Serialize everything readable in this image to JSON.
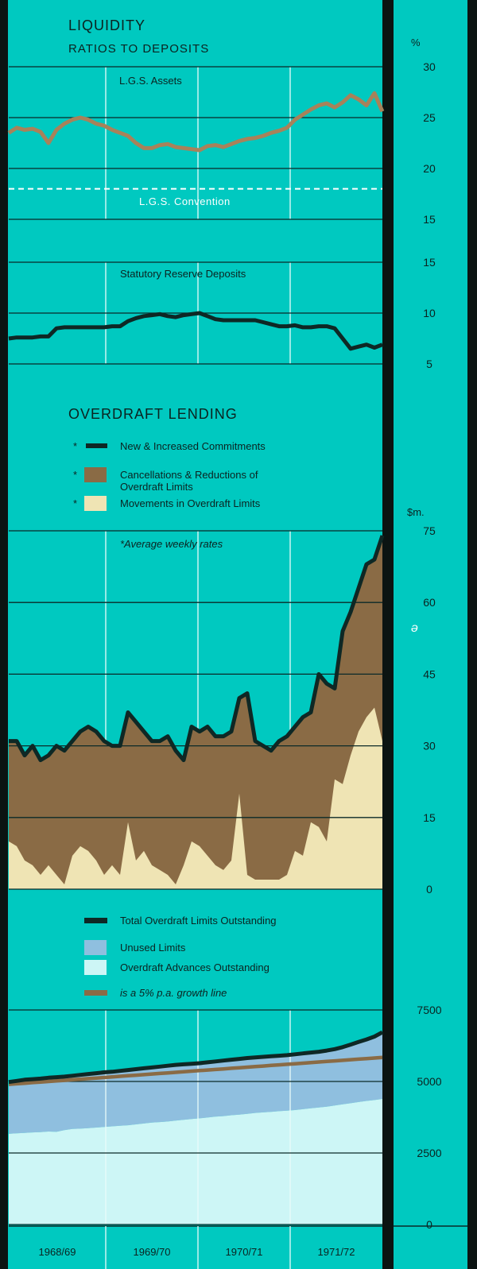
{
  "colors": {
    "background": "#00c9c0",
    "separator": "#0b1412",
    "grid_dark": "#0b2a28",
    "grid_light": "#e9fbfa",
    "lgs_line": "#a8825a",
    "dark_line": "#0e2825",
    "cancellations": "#8a6b45",
    "movements": "#efe4b4",
    "unused": "#8fbfdf",
    "advances": "#cdf6f6",
    "growth_line": "#8a6b45"
  },
  "liquidity": {
    "title": "LIQUIDITY",
    "subtitle": "RATIOS TO DEPOSITS",
    "unit": "%",
    "lgs_label": "L.G.S. Assets",
    "convention_label": "L.G.S. Convention",
    "srd_label": "Statutory Reserve Deposits"
  },
  "overdraft": {
    "title": "OVERDRAFT LENDING",
    "legend": [
      {
        "marker": "*",
        "label_lines": [
          "New & Increased Commitments"
        ],
        "swatch": "line"
      },
      {
        "marker": "*",
        "label_lines": [
          "Cancellations & Reductions of",
          "Overdraft Limits"
        ],
        "swatch": "cancellations"
      },
      {
        "marker": "*",
        "label_lines": [
          "Movements in Overdraft Limits"
        ],
        "swatch": "movements"
      }
    ],
    "unit": "$m.",
    "note": "*Average weekly rates",
    "stray_mark": "ə"
  },
  "limits_legend": [
    {
      "label": "Total Overdraft Limits Outstanding",
      "swatch": "line",
      "italic": false
    },
    {
      "label": "Unused Limits",
      "swatch": "unused",
      "italic": false
    },
    {
      "label": "Overdraft Advances Outstanding",
      "swatch": "advances",
      "italic": false
    },
    {
      "label": "is a 5% p.a. growth line",
      "swatch": "growth",
      "italic": true
    }
  ],
  "x_axis": [
    "1968/69",
    "1969/70",
    "1970/71",
    "1971/72"
  ],
  "chart_data": [
    {
      "type": "line",
      "panel": "lgs",
      "x": [
        0,
        1,
        2,
        3,
        4,
        5,
        6,
        7,
        8,
        9,
        10,
        11,
        12,
        13,
        14,
        15,
        16,
        17,
        18,
        19,
        20,
        21,
        22,
        23,
        24,
        25,
        26,
        27,
        28,
        29,
        30,
        31,
        32,
        33,
        34,
        35,
        36,
        37,
        38,
        39,
        40,
        41,
        42,
        43,
        44,
        45,
        46,
        47
      ],
      "series": [
        {
          "name": "L.G.S. Assets",
          "values": [
            23.5,
            24.0,
            23.8,
            23.9,
            23.6,
            22.5,
            23.8,
            24.4,
            24.8,
            25.0,
            24.8,
            24.4,
            24.2,
            23.8,
            23.5,
            23.2,
            22.5,
            22.0,
            22.0,
            22.3,
            22.4,
            22.1,
            22.0,
            21.9,
            21.8,
            22.2,
            22.3,
            22.1,
            22.4,
            22.7,
            22.9,
            23.0,
            23.2,
            23.5,
            23.7,
            24.0,
            24.8,
            25.3,
            25.8,
            26.2,
            26.4,
            26.0,
            26.5,
            27.2,
            26.8,
            26.2,
            27.4,
            25.6
          ]
        },
        {
          "name": "L.G.S. Convention",
          "values": [
            18.0,
            18.0,
            18.0,
            18.0,
            18.0,
            18.0,
            18.0,
            18.0,
            18.0,
            18.0,
            18.0,
            18.0,
            18.0,
            18.0,
            18.0,
            18.0,
            18.0,
            18.0,
            18.0,
            18.0,
            18.0,
            18.0,
            18.0,
            18.0,
            18.0,
            18.0,
            18.0,
            18.0,
            18.0,
            18.0,
            18.0,
            18.0,
            18.0,
            18.0,
            18.0,
            18.0,
            18.0,
            18.0,
            18.0,
            18.0,
            18.0,
            18.0,
            18.0,
            18.0,
            18.0,
            18.0,
            18.0,
            18.0
          ]
        }
      ],
      "ylim": [
        15,
        30
      ],
      "yticks": [
        15,
        20,
        25,
        30
      ]
    },
    {
      "type": "line",
      "panel": "srd",
      "x": [
        0,
        1,
        2,
        3,
        4,
        5,
        6,
        7,
        8,
        9,
        10,
        11,
        12,
        13,
        14,
        15,
        16,
        17,
        18,
        19,
        20,
        21,
        22,
        23,
        24,
        25,
        26,
        27,
        28,
        29,
        30,
        31,
        32,
        33,
        34,
        35,
        36,
        37,
        38,
        39,
        40,
        41,
        42,
        43,
        44,
        45,
        46,
        47
      ],
      "series": [
        {
          "name": "Statutory Reserve Deposits",
          "values": [
            7.5,
            7.6,
            7.6,
            7.6,
            7.7,
            7.7,
            8.5,
            8.6,
            8.6,
            8.6,
            8.6,
            8.6,
            8.6,
            8.7,
            8.7,
            9.2,
            9.5,
            9.7,
            9.8,
            9.9,
            9.7,
            9.6,
            9.8,
            9.9,
            10.0,
            9.7,
            9.4,
            9.3,
            9.3,
            9.3,
            9.3,
            9.3,
            9.1,
            8.9,
            8.7,
            8.7,
            8.8,
            8.6,
            8.6,
            8.7,
            8.7,
            8.5,
            7.5,
            6.5,
            6.7,
            6.9,
            6.6,
            6.9
          ]
        }
      ],
      "ylim": [
        5,
        15
      ],
      "yticks": [
        5,
        10,
        15
      ]
    },
    {
      "type": "area",
      "panel": "overdraft",
      "x": [
        0,
        1,
        2,
        3,
        4,
        5,
        6,
        7,
        8,
        9,
        10,
        11,
        12,
        13,
        14,
        15,
        16,
        17,
        18,
        19,
        20,
        21,
        22,
        23,
        24,
        25,
        26,
        27,
        28,
        29,
        30,
        31,
        32,
        33,
        34,
        35,
        36,
        37,
        38,
        39,
        40,
        41,
        42,
        43,
        44,
        45,
        46,
        47
      ],
      "series": [
        {
          "name": "New & Increased Commitments",
          "values": [
            31,
            31,
            28,
            30,
            27,
            28,
            30,
            29,
            31,
            33,
            34,
            33,
            31,
            30,
            30,
            37,
            35,
            33,
            31,
            31,
            32,
            29,
            27,
            34,
            33,
            34,
            32,
            32,
            33,
            40,
            41,
            31,
            30,
            29,
            31,
            32,
            34,
            36,
            37,
            45,
            43,
            42,
            54,
            58,
            63,
            68,
            69,
            74
          ]
        },
        {
          "name": "Movements in Overdraft Limits",
          "values": [
            10,
            9,
            6,
            5,
            3,
            5,
            3,
            1,
            7,
            9,
            8,
            6,
            3,
            5,
            3,
            14,
            6,
            8,
            5,
            4,
            3,
            1,
            5,
            10,
            9,
            7,
            5,
            4,
            6,
            20,
            3,
            2,
            2,
            2,
            2,
            3,
            8,
            7,
            14,
            13,
            10,
            23,
            22,
            28,
            33,
            36,
            38,
            31
          ]
        }
      ],
      "ylim": [
        0,
        75
      ],
      "yticks": [
        0,
        15,
        30,
        45,
        60,
        75
      ]
    },
    {
      "type": "area",
      "panel": "limits",
      "x": [
        0,
        1,
        2,
        3,
        4,
        5,
        6,
        7,
        8,
        9,
        10,
        11,
        12,
        13,
        14,
        15,
        16,
        17,
        18,
        19,
        20,
        21,
        22,
        23,
        24,
        25,
        26,
        27,
        28,
        29,
        30,
        31,
        32,
        33,
        34,
        35,
        36,
        37,
        38,
        39,
        40,
        41,
        42,
        43,
        44,
        45,
        46,
        47
      ],
      "series": [
        {
          "name": "Total Overdraft Limits Outstanding",
          "values": [
            4980,
            5020,
            5060,
            5080,
            5100,
            5130,
            5150,
            5170,
            5200,
            5230,
            5260,
            5290,
            5320,
            5340,
            5370,
            5400,
            5430,
            5460,
            5490,
            5520,
            5550,
            5580,
            5600,
            5620,
            5640,
            5670,
            5700,
            5730,
            5760,
            5790,
            5820,
            5840,
            5860,
            5880,
            5900,
            5920,
            5950,
            5980,
            6010,
            6040,
            6080,
            6130,
            6200,
            6290,
            6380,
            6470,
            6570,
            6720
          ]
        },
        {
          "name": "Overdraft Advances Outstanding",
          "values": [
            3170,
            3190,
            3200,
            3220,
            3230,
            3250,
            3240,
            3300,
            3340,
            3350,
            3370,
            3390,
            3410,
            3430,
            3450,
            3470,
            3500,
            3530,
            3560,
            3580,
            3600,
            3630,
            3660,
            3690,
            3710,
            3740,
            3770,
            3790,
            3820,
            3840,
            3870,
            3900,
            3920,
            3940,
            3960,
            3980,
            4000,
            4030,
            4060,
            4090,
            4120,
            4160,
            4200,
            4240,
            4280,
            4320,
            4350,
            4390
          ]
        },
        {
          "name": "is a 5% p.a. growth line",
          "values": [
            4900,
            4920,
            4940,
            4960,
            4980,
            5000,
            5020,
            5040,
            5060,
            5080,
            5100,
            5120,
            5140,
            5160,
            5180,
            5200,
            5220,
            5240,
            5260,
            5280,
            5300,
            5320,
            5340,
            5360,
            5380,
            5400,
            5420,
            5440,
            5460,
            5480,
            5500,
            5520,
            5540,
            5560,
            5580,
            5600,
            5620,
            5640,
            5660,
            5680,
            5700,
            5720,
            5740,
            5760,
            5780,
            5800,
            5820,
            5840
          ]
        }
      ],
      "ylim": [
        0,
        7500
      ],
      "yticks": [
        0,
        2500,
        5000,
        7500
      ]
    }
  ]
}
